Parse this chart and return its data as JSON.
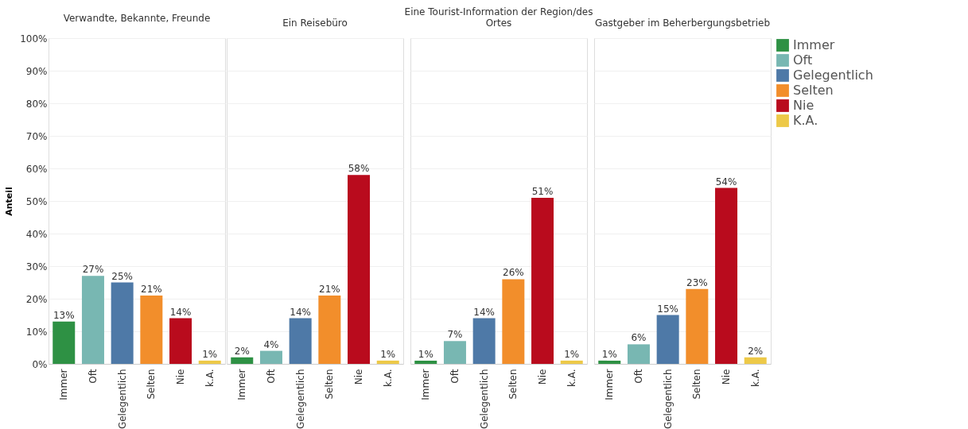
{
  "chart_data": [
    {
      "type": "bar",
      "title": "Verwandte, Bekannte, Freunde",
      "ylabel": "Anteil",
      "categories": [
        "Immer",
        "Oft",
        "Gelegentlich",
        "Selten",
        "Nie",
        "k.A."
      ],
      "ylim": [
        0,
        100
      ],
      "yticks": [
        {
          "value": 0,
          "label": "0%"
        },
        {
          "value": 10,
          "label": "10%"
        },
        {
          "value": 20,
          "label": "20%"
        },
        {
          "value": 30,
          "label": "30%"
        },
        {
          "value": 40,
          "label": "40%"
        },
        {
          "value": 50,
          "label": "50%"
        },
        {
          "value": 60,
          "label": "60%"
        },
        {
          "value": 70,
          "label": "70%"
        },
        {
          "value": 80,
          "label": "80%"
        },
        {
          "value": 90,
          "label": "90%"
        },
        {
          "value": 100,
          "label": "100%"
        }
      ],
      "grid": "y",
      "values": [
        13,
        27,
        25,
        21,
        14,
        1
      ],
      "value_labels": [
        "13%",
        "27%",
        "25%",
        "21%",
        "14%",
        "1%"
      ],
      "colors": [
        "#2e9144",
        "#78b7b2",
        "#4e79a7",
        "#f28e2b",
        "#b90b1d",
        "#edc948"
      ]
    },
    {
      "type": "bar",
      "title": "Ein Reisebüro",
      "categories": [
        "Immer",
        "Oft",
        "Gelegentlich",
        "Selten",
        "Nie",
        "k.A."
      ],
      "ylim": [
        0,
        100
      ],
      "yticks": [
        0,
        10,
        20,
        30,
        40,
        50,
        60,
        70,
        80,
        90,
        100
      ],
      "grid": "y",
      "tick_labels": "x",
      "values": [
        2,
        4,
        14,
        21,
        58,
        1
      ],
      "value_labels": [
        "2%",
        "4%",
        "14%",
        "21%",
        "58%",
        "1%"
      ],
      "colors": [
        "#2e9144",
        "#78b7b2",
        "#4e79a7",
        "#f28e2b",
        "#b90b1d",
        "#edc948"
      ]
    },
    {
      "type": "bar",
      "title": "Eine Tourist-Information der Region/des Ortes",
      "categories": [
        "Immer",
        "Oft",
        "Gelegentlich",
        "Selten",
        "Nie",
        "k.A."
      ],
      "ylim": [
        0,
        100
      ],
      "yticks": [
        0,
        10,
        20,
        30,
        40,
        50,
        60,
        70,
        80,
        90,
        100
      ],
      "grid": "y",
      "tick_labels": "x",
      "values": [
        1,
        7,
        14,
        26,
        51,
        1
      ],
      "value_labels": [
        "1%",
        "7%",
        "14%",
        "26%",
        "51%",
        "1%"
      ],
      "colors": [
        "#2e9144",
        "#78b7b2",
        "#4e79a7",
        "#f28e2b",
        "#b90b1d",
        "#edc948"
      ]
    },
    {
      "type": "bar",
      "title": "Gastgeber im Beherbergungsbetrieb",
      "categories": [
        "Immer",
        "Oft",
        "Gelegentlich",
        "Selten",
        "Nie",
        "k.A."
      ],
      "ylim": [
        0,
        100
      ],
      "yticks": [
        0,
        10,
        20,
        30,
        40,
        50,
        60,
        70,
        80,
        90,
        100
      ],
      "grid": "y",
      "tick_labels": "x",
      "legend": "right",
      "series": [
        {
          "name": "Immer",
          "color": "#2e9144",
          "values": [
            1,
            null,
            null,
            null,
            null,
            null
          ],
          "value_labels": [
            "1%",
            null,
            null,
            null,
            null,
            null
          ]
        },
        {
          "name": "Oft",
          "color": "#78b7b2",
          "values": [
            null,
            6,
            null,
            null,
            null,
            null
          ],
          "value_labels": [
            null,
            "6%",
            null,
            null,
            null,
            null
          ]
        },
        {
          "name": "Gelegentlich",
          "color": "#4e79a7",
          "values": [
            null,
            null,
            15,
            null,
            null,
            null
          ],
          "value_labels": [
            null,
            null,
            "15%",
            null,
            null,
            null
          ]
        },
        {
          "name": "Selten",
          "color": "#f28e2b",
          "values": [
            null,
            null,
            null,
            23,
            null,
            null
          ],
          "value_labels": [
            null,
            null,
            null,
            "23%",
            null,
            null
          ]
        },
        {
          "name": "Nie",
          "color": "#b90b1d",
          "values": [
            null,
            null,
            null,
            null,
            54,
            null
          ],
          "value_labels": [
            null,
            null,
            null,
            null,
            "54%",
            null
          ]
        },
        {
          "name": "K.A.",
          "color": "#edc948",
          "values": [
            null,
            null,
            null,
            null,
            null,
            2
          ],
          "value_labels": [
            null,
            null,
            null,
            null,
            null,
            "2%"
          ]
        }
      ]
    }
  ]
}
